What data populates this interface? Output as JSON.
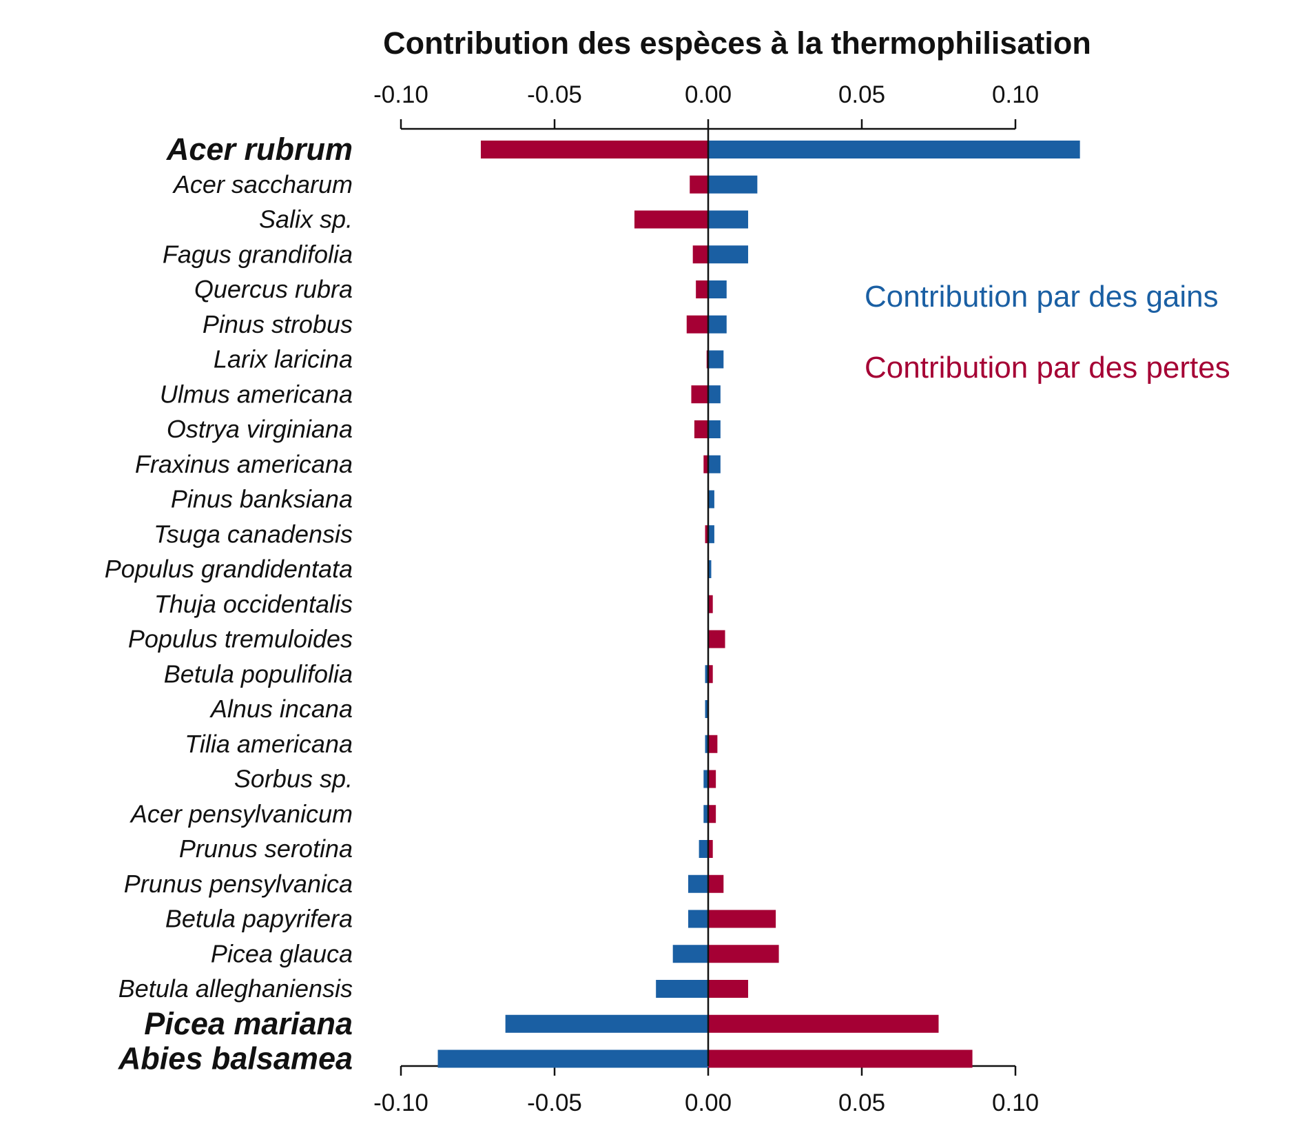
{
  "chart_data": {
    "type": "bar",
    "orientation": "horizontal-diverging",
    "title": "Contribution des espèces à la thermophilisation",
    "xlim": [
      -0.1,
      0.1
    ],
    "ticks": [
      -0.1,
      -0.05,
      0.0,
      0.05,
      0.1
    ],
    "tick_labels": [
      "-0.10",
      "-0.05",
      "0.00",
      "0.05",
      "0.10"
    ],
    "colors": {
      "gains": "#1a5fa3",
      "losses": "#a50034",
      "axis": "#111111"
    },
    "legend": [
      {
        "key": "gains",
        "label": "Contribution par des gains"
      },
      {
        "key": "losses",
        "label": "Contribution par des pertes"
      }
    ],
    "legend_position": "top-right",
    "categories": [
      "Acer rubrum",
      "Acer saccharum",
      "Salix sp.",
      "Fagus grandifolia",
      "Quercus rubra",
      "Pinus strobus",
      "Larix laricina",
      "Ulmus americana",
      "Ostrya virginiana",
      "Fraxinus americana",
      "Pinus banksiana",
      "Tsuga canadensis",
      "Populus grandidentata",
      "Thuja occidentalis",
      "Populus tremuloides",
      "Betula populifolia",
      "Alnus incana",
      "Tilia americana",
      "Sorbus sp.",
      "Acer pensylvanicum",
      "Prunus serotina",
      "Prunus pensylvanica",
      "Betula papyrifera",
      "Picea glauca",
      "Betula alleghaniensis",
      "Picea mariana",
      "Abies balsamea"
    ],
    "bold_categories": [
      "Acer rubrum",
      "Picea mariana",
      "Abies balsamea"
    ],
    "series": [
      {
        "name": "gains",
        "values": [
          0.121,
          0.016,
          0.013,
          0.013,
          0.006,
          0.006,
          0.005,
          0.004,
          0.004,
          0.004,
          0.002,
          0.002,
          0.001,
          0.0,
          0.0,
          -0.001,
          -0.001,
          -0.001,
          -0.0015,
          -0.0015,
          -0.003,
          -0.0065,
          -0.0065,
          -0.0115,
          -0.017,
          -0.066,
          -0.088
        ]
      },
      {
        "name": "losses",
        "values": [
          -0.074,
          -0.006,
          -0.024,
          -0.005,
          -0.004,
          -0.007,
          -0.0005,
          -0.0055,
          -0.0045,
          -0.0015,
          0.0,
          -0.001,
          0.0,
          0.0015,
          0.0055,
          0.0015,
          0.0,
          0.003,
          0.0025,
          0.0025,
          0.0015,
          0.005,
          0.022,
          0.023,
          0.013,
          0.075,
          0.086
        ]
      }
    ]
  }
}
